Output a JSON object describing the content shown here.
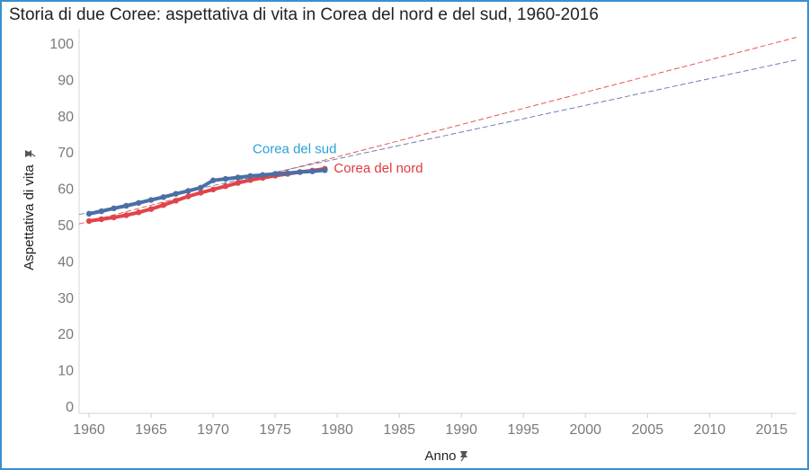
{
  "chart_data": {
    "type": "line",
    "title": "Storia di due Coree: aspettativa di vita in Corea del nord e del sud, 1960-2016",
    "xlabel": "Anno",
    "ylabel": "Aspettativa di vita",
    "xlim": [
      1959.2,
      2017
    ],
    "ylim": [
      -2,
      102
    ],
    "x_ticks": [
      1960,
      1965,
      1970,
      1975,
      1980,
      1985,
      1990,
      1995,
      2000,
      2005,
      2010,
      2015
    ],
    "y_ticks": [
      0,
      10,
      20,
      30,
      40,
      50,
      60,
      70,
      80,
      90,
      100
    ],
    "grid": false,
    "x": [
      1960,
      1961,
      1962,
      1963,
      1964,
      1965,
      1966,
      1967,
      1968,
      1969,
      1970,
      1971,
      1972,
      1973,
      1974,
      1975,
      1976,
      1977,
      1978,
      1979
    ],
    "series": [
      {
        "name": "Corea del sud",
        "color": "#4a6fa5",
        "label_color": "#2aa0d8",
        "values": [
          53.0,
          53.7,
          54.5,
          55.2,
          56.0,
          56.8,
          57.6,
          58.5,
          59.3,
          60.2,
          62.2,
          62.6,
          63.0,
          63.4,
          63.7,
          64.0,
          64.2,
          64.5,
          64.7,
          65.0
        ],
        "trend": {
          "x": [
            1959.2,
            2017
          ],
          "y": [
            52.8,
            95.4
          ],
          "color": "#6d7fb5"
        }
      },
      {
        "name": "Corea del nord",
        "color": "#e0444a",
        "label_color": "#e03a3f",
        "values": [
          51.0,
          51.5,
          52.0,
          52.6,
          53.4,
          54.3,
          55.4,
          56.6,
          57.8,
          58.8,
          59.7,
          60.6,
          61.5,
          62.3,
          62.9,
          63.5,
          64.0,
          64.5,
          64.9,
          65.4
        ],
        "trend": {
          "x": [
            1959.2,
            2017
          ],
          "y": [
            50.2,
            101.6
          ],
          "color": "#e05a5a"
        }
      }
    ]
  }
}
